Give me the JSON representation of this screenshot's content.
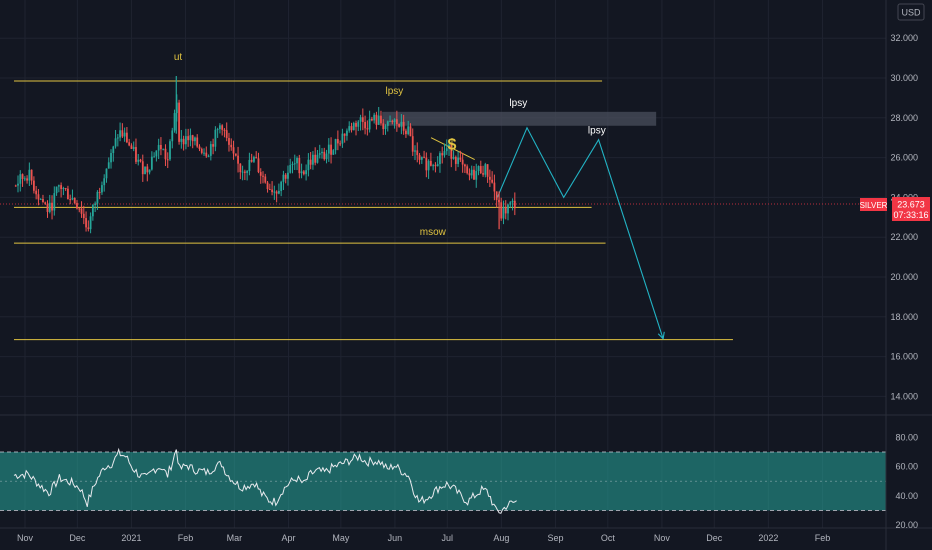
{
  "header": {
    "currency": "USD"
  },
  "price_badge": {
    "symbol": "SILVER",
    "price": "23.673",
    "countdown": "07:33:16",
    "color": "#f23645"
  },
  "chart_data": [
    {
      "type": "candlestick",
      "ylim": [
        13.0,
        33.0
      ],
      "y_ticks": [
        "32.000",
        "30.000",
        "28.000",
        "26.000",
        "24.000",
        "22.000",
        "20.000",
        "18.000",
        "16.000",
        "14.000"
      ],
      "y_tick_values": [
        32,
        30,
        28,
        26,
        24,
        22,
        20,
        18,
        16,
        14
      ],
      "x_ticks": [
        "Nov",
        "Dec",
        "2021",
        "Feb",
        "Mar",
        "Apr",
        "May",
        "Jun",
        "Jul",
        "Aug",
        "Sep",
        "Oct",
        "Nov",
        "Dec",
        "2022",
        "Feb"
      ],
      "x_tick_days": [
        0,
        30,
        61,
        92,
        120,
        151,
        181,
        212,
        242,
        273,
        304,
        334,
        365,
        395,
        426,
        457
      ],
      "bull_color": "#26a69a",
      "bear_color": "#ef5350",
      "price_path": [
        [
          0,
          24.6
        ],
        [
          8,
          25.2
        ],
        [
          14,
          24.1
        ],
        [
          20,
          23.3
        ],
        [
          26,
          24.6
        ],
        [
          33,
          24.0
        ],
        [
          38,
          23.5
        ],
        [
          42,
          22.4
        ],
        [
          47,
          23.9
        ],
        [
          52,
          25.4
        ],
        [
          56,
          26.1
        ],
        [
          60,
          27.3
        ],
        [
          64,
          27.0
        ],
        [
          68,
          26.3
        ],
        [
          72,
          25.6
        ],
        [
          76,
          25.4
        ],
        [
          80,
          26.2
        ],
        [
          84,
          26.6
        ],
        [
          88,
          25.8
        ],
        [
          91,
          27.4
        ],
        [
          93,
          29.3
        ],
        [
          95,
          26.6
        ],
        [
          99,
          27.1
        ],
        [
          103,
          26.7
        ],
        [
          107,
          26.5
        ],
        [
          111,
          26.3
        ],
        [
          115,
          27.0
        ],
        [
          119,
          27.8
        ],
        [
          122,
          26.8
        ],
        [
          126,
          25.9
        ],
        [
          130,
          25.4
        ],
        [
          134,
          25.6
        ],
        [
          138,
          25.9
        ],
        [
          142,
          25.1
        ],
        [
          146,
          24.6
        ],
        [
          150,
          24.3
        ],
        [
          154,
          25.0
        ],
        [
          158,
          25.4
        ],
        [
          162,
          25.7
        ],
        [
          166,
          25.3
        ],
        [
          170,
          25.9
        ],
        [
          174,
          26.0
        ],
        [
          178,
          26.1
        ],
        [
          182,
          26.5
        ],
        [
          186,
          26.9
        ],
        [
          190,
          27.3
        ],
        [
          194,
          27.6
        ],
        [
          198,
          27.9
        ],
        [
          202,
          27.7
        ],
        [
          206,
          27.9
        ],
        [
          210,
          27.8
        ],
        [
          214,
          27.5
        ],
        [
          218,
          27.8
        ],
        [
          222,
          27.5
        ],
        [
          226,
          27.3
        ],
        [
          229,
          26.3
        ],
        [
          232,
          25.7
        ],
        [
          236,
          25.7
        ],
        [
          240,
          25.8
        ],
        [
          244,
          26.1
        ],
        [
          248,
          26.4
        ],
        [
          252,
          26.2
        ],
        [
          256,
          25.6
        ],
        [
          260,
          25.0
        ],
        [
          264,
          25.2
        ],
        [
          268,
          25.5
        ],
        [
          271,
          25.3
        ],
        [
          273,
          25.0
        ],
        [
          276,
          24.1
        ],
        [
          279,
          23.1
        ],
        [
          282,
          23.4
        ],
        [
          285,
          23.6
        ],
        [
          288,
          23.7
        ]
      ],
      "rsi": {
        "ylim": [
          20,
          80
        ],
        "y_ticks": [
          "80.00",
          "60.00",
          "40.00",
          "20.00"
        ],
        "y_tick_values": [
          80,
          60,
          40,
          20
        ],
        "band_upper": 70,
        "band_lower": 30,
        "midline": 50,
        "band_color": "#26a69a",
        "values": [
          [
            0,
            54
          ],
          [
            8,
            55
          ],
          [
            14,
            48
          ],
          [
            20,
            42
          ],
          [
            26,
            52
          ],
          [
            33,
            49
          ],
          [
            38,
            45
          ],
          [
            42,
            35
          ],
          [
            47,
            50
          ],
          [
            52,
            60
          ],
          [
            56,
            62
          ],
          [
            60,
            69
          ],
          [
            64,
            67
          ],
          [
            68,
            59
          ],
          [
            72,
            54
          ],
          [
            76,
            52
          ],
          [
            80,
            58
          ],
          [
            84,
            60
          ],
          [
            88,
            54
          ],
          [
            91,
            64
          ],
          [
            93,
            72
          ],
          [
            95,
            58
          ],
          [
            99,
            61
          ],
          [
            103,
            58
          ],
          [
            107,
            57
          ],
          [
            111,
            56
          ],
          [
            115,
            60
          ],
          [
            119,
            62
          ],
          [
            122,
            55
          ],
          [
            126,
            50
          ],
          [
            130,
            46
          ],
          [
            134,
            47
          ],
          [
            138,
            49
          ],
          [
            142,
            41
          ],
          [
            146,
            37
          ],
          [
            150,
            36
          ],
          [
            154,
            44
          ],
          [
            158,
            49
          ],
          [
            162,
            52
          ],
          [
            166,
            48
          ],
          [
            170,
            55
          ],
          [
            174,
            57
          ],
          [
            178,
            56
          ],
          [
            182,
            59
          ],
          [
            186,
            61
          ],
          [
            190,
            63
          ],
          [
            194,
            65
          ],
          [
            198,
            67
          ],
          [
            202,
            63
          ],
          [
            206,
            64
          ],
          [
            210,
            63
          ],
          [
            214,
            58
          ],
          [
            218,
            61
          ],
          [
            222,
            57
          ],
          [
            226,
            54
          ],
          [
            229,
            44
          ],
          [
            232,
            36
          ],
          [
            236,
            38
          ],
          [
            240,
            42
          ],
          [
            244,
            46
          ],
          [
            248,
            48
          ],
          [
            252,
            45
          ],
          [
            256,
            40
          ],
          [
            260,
            36
          ],
          [
            264,
            40
          ],
          [
            268,
            44
          ],
          [
            271,
            43
          ],
          [
            273,
            39
          ],
          [
            276,
            30
          ],
          [
            279,
            29
          ],
          [
            282,
            33
          ],
          [
            285,
            35
          ],
          [
            288,
            36
          ]
        ]
      }
    }
  ],
  "annotations": {
    "labels": [
      {
        "text": "ut",
        "day": 94,
        "price": 30.9,
        "color": "#e0c341"
      },
      {
        "text": "lpsy",
        "day": 218,
        "price": 29.2,
        "color": "#e0c341"
      },
      {
        "text": "lpsy",
        "day": 289,
        "price": 28.6,
        "color": "#ffffff"
      },
      {
        "text": "lpsy",
        "day": 334,
        "price": 27.2,
        "color": "#ffffff"
      },
      {
        "text": "msow",
        "day": 240,
        "price": 22.1,
        "color": "#e0c341"
      },
      {
        "text": "$",
        "day": 251,
        "price": 26.4,
        "color": "#e0c341"
      }
    ],
    "hlines": [
      {
        "price": 29.85,
        "day_start": 0,
        "day_end": 337
      },
      {
        "price": 23.5,
        "day_start": 0,
        "day_end": 331
      },
      {
        "price": 21.7,
        "day_start": 0,
        "day_end": 339
      },
      {
        "price": 16.85,
        "day_start": 0,
        "day_end": 412
      }
    ],
    "trendline": {
      "from": [
        239,
        27.0
      ],
      "to": [
        264,
        25.9
      ]
    },
    "zone": {
      "day_start": 211,
      "day_end": 368,
      "price_top": 28.3,
      "price_bottom": 27.6
    },
    "projection": [
      [
        277,
        24.0
      ],
      [
        294,
        27.5
      ],
      [
        315,
        24.0
      ],
      [
        335,
        26.9
      ],
      [
        372,
        16.9
      ]
    ],
    "line_color": "#e0c341",
    "projection_color": "#22b3c4"
  }
}
